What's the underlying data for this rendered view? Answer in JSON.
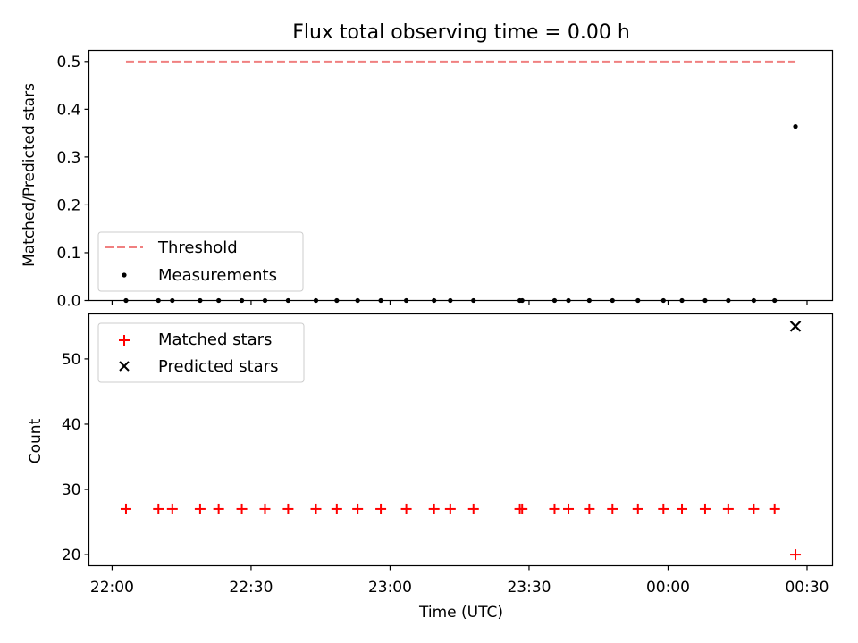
{
  "chart_data": {
    "title": "Flux total observing time = 0.00 h",
    "xlabel": "Time (UTC)",
    "x_tick_labels": [
      "22:00",
      "22:30",
      "23:00",
      "23:30",
      "00:00",
      "00:30"
    ],
    "x_tick_minutes": [
      0,
      30,
      60,
      90,
      120,
      150
    ],
    "xlim_minutes": [
      -5,
      155.5
    ],
    "panels": [
      {
        "type": "scatter",
        "ylabel": "Matched/Predicted stars",
        "ylim": [
          0,
          0.523
        ],
        "yticks": [
          0.0,
          0.1,
          0.2,
          0.3,
          0.4,
          0.5
        ],
        "ytick_labels": [
          "0.0",
          "0.1",
          "0.2",
          "0.3",
          "0.4",
          "0.5"
        ],
        "legend": {
          "placement": "lower-left",
          "entries": [
            "Threshold",
            "Measurements"
          ]
        },
        "series": [
          {
            "name": "Threshold",
            "kind": "hline",
            "y": 0.5,
            "x_range_minutes": [
              3,
              147.5
            ],
            "color": "#f08080",
            "style": "dashed"
          },
          {
            "name": "Measurements",
            "kind": "points",
            "color": "#000000",
            "x_minutes": [
              3,
              10,
              13,
              19,
              23,
              28,
              33,
              38,
              44,
              48.5,
              53,
              58,
              63.5,
              69.5,
              73,
              78,
              88,
              88.5,
              95.5,
              98.5,
              103,
              108,
              113.5,
              119,
              123,
              128,
              133,
              138.5,
              143,
              147.5
            ],
            "y": [
              0,
              0,
              0,
              0,
              0,
              0,
              0,
              0,
              0,
              0,
              0,
              0,
              0,
              0,
              0,
              0,
              0,
              0,
              0,
              0,
              0,
              0,
              0,
              0,
              0,
              0,
              0,
              0,
              0,
              0.364
            ]
          }
        ]
      },
      {
        "type": "scatter",
        "ylabel": "Count",
        "ylim": [
          18.3,
          56.9
        ],
        "yticks": [
          20,
          30,
          40,
          50
        ],
        "ytick_labels": [
          "20",
          "30",
          "40",
          "50"
        ],
        "legend": {
          "placement": "top-left",
          "entries": [
            "Matched stars",
            "Predicted stars"
          ]
        },
        "series": [
          {
            "name": "Matched stars",
            "marker": "plus",
            "color": "#ff0000",
            "x_minutes": [
              3,
              10,
              13,
              19,
              23,
              28,
              33,
              38,
              44,
              48.5,
              53,
              58,
              63.5,
              69.5,
              73,
              78,
              88,
              88.5,
              95.5,
              98.5,
              103,
              108,
              113.5,
              119,
              123,
              128,
              133,
              138.5,
              143,
              147.5
            ],
            "y": [
              27,
              27,
              27,
              27,
              27,
              27,
              27,
              27,
              27,
              27,
              27,
              27,
              27,
              27,
              27,
              27,
              27,
              27,
              27,
              27,
              27,
              27,
              27,
              27,
              27,
              27,
              27,
              27,
              27,
              20
            ]
          },
          {
            "name": "Predicted stars",
            "marker": "x",
            "color": "#000000",
            "x_minutes": [
              147.5
            ],
            "y": [
              55
            ]
          }
        ]
      }
    ]
  }
}
